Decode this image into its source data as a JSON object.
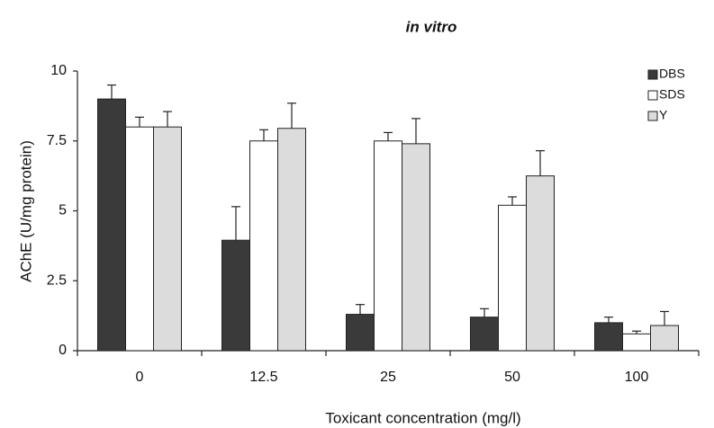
{
  "chart_data": {
    "type": "bar",
    "title": "in vitro",
    "x_label": "Toxicant concentration (mg/l)",
    "y_label": "AChE (U/mg protein)",
    "categories": [
      "0",
      "12.5",
      "25",
      "50",
      "100"
    ],
    "series": [
      {
        "name": "DBS",
        "color": "#3a3a3a",
        "values": [
          9.0,
          3.95,
          1.3,
          1.2,
          1.0
        ],
        "errors": [
          0.5,
          1.2,
          0.35,
          0.3,
          0.2
        ]
      },
      {
        "name": "SDS",
        "color": "#ffffff",
        "values": [
          8.0,
          7.5,
          7.5,
          5.2,
          0.6
        ],
        "errors": [
          0.35,
          0.4,
          0.3,
          0.3,
          0.1
        ]
      },
      {
        "name": "Y",
        "color": "#dcdcdc",
        "values": [
          8.0,
          7.95,
          7.4,
          6.25,
          0.9
        ],
        "errors": [
          0.55,
          0.9,
          0.9,
          0.9,
          0.5
        ]
      }
    ],
    "ylim": [
      0,
      10
    ],
    "yticks": [
      0,
      2.5,
      5,
      7.5,
      10
    ],
    "grid": false,
    "legend": "top-right"
  }
}
